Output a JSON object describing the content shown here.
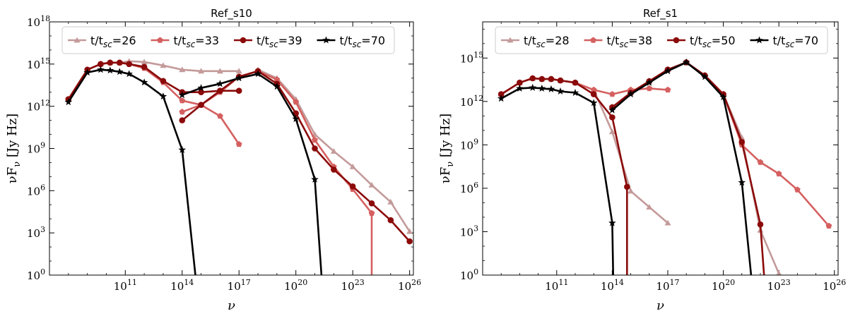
{
  "figure": {
    "x_label": "ν",
    "y_label": "νF_ν [Jy Hz]",
    "legend_prefix": "t/t",
    "legend_sub": "sc"
  },
  "chart_data": [
    {
      "type": "line",
      "title": "Ref_s10",
      "xlabel": "ν",
      "ylabel": "νF_ν [Jy Hz]",
      "x_scale": "log",
      "y_scale": "log",
      "xlim_log10": [
        7.0,
        26.2
      ],
      "ylim_log10": [
        0,
        18
      ],
      "x_ticks": [
        11,
        14,
        17,
        20,
        23,
        26
      ],
      "y_ticks": [
        0,
        3,
        6,
        9,
        12,
        15,
        18
      ],
      "legend_position": "top",
      "series": [
        {
          "name": "t/tsc=26",
          "value": "26",
          "color": "#c49a9a",
          "marker": "triangle",
          "segments": [
            [
              [
                8.0,
                12.5
              ],
              [
                9.0,
                14.6
              ],
              [
                9.7,
                15.0
              ],
              [
                10.2,
                15.1
              ],
              [
                10.7,
                15.1
              ],
              [
                11.2,
                15.2
              ],
              [
                12.0,
                15.15
              ],
              [
                13.0,
                14.9
              ],
              [
                14.0,
                14.6
              ],
              [
                15.0,
                14.5
              ],
              [
                16.0,
                14.5
              ],
              [
                17.0,
                14.5
              ]
            ],
            [
              [
                18.0,
                14.6
              ],
              [
                19.0,
                14.0
              ],
              [
                20.0,
                12.5
              ],
              [
                21.0,
                10.0
              ],
              [
                22.0,
                8.8
              ],
              [
                23.0,
                7.7
              ],
              [
                24.0,
                6.4
              ],
              [
                25.0,
                5.2
              ],
              [
                26.0,
                3.1
              ]
            ]
          ]
        },
        {
          "name": "t/tsc=33",
          "value": "33",
          "color": "#d56060",
          "marker": "pentagon",
          "segments": [
            [
              [
                8.0,
                12.5
              ],
              [
                9.0,
                14.6
              ],
              [
                9.7,
                15.0
              ],
              [
                10.2,
                15.1
              ],
              [
                10.7,
                15.1
              ],
              [
                11.2,
                15.0
              ],
              [
                12.0,
                14.7
              ],
              [
                13.0,
                13.7
              ],
              [
                14.0,
                12.4
              ],
              [
                15.0,
                12.1
              ],
              [
                16.0,
                11.3
              ],
              [
                17.0,
                9.3
              ]
            ],
            [
              [
                14.0,
                11.6
              ],
              [
                15.0,
                12.1
              ],
              [
                16.0,
                13.0
              ],
              [
                17.0,
                14.1
              ],
              [
                18.0,
                14.5
              ],
              [
                19.0,
                13.9
              ],
              [
                20.0,
                12.3
              ],
              [
                21.0,
                9.6
              ],
              [
                22.0,
                7.7
              ],
              [
                23.0,
                6.1
              ],
              [
                24.0,
                4.4
              ],
              [
                24.0,
                0.0
              ]
            ]
          ]
        },
        {
          "name": "t/tsc=39",
          "value": "39",
          "color": "#8b0a0a",
          "marker": "circle",
          "segments": [
            [
              [
                8.0,
                12.5
              ],
              [
                9.0,
                14.6
              ],
              [
                9.7,
                15.0
              ],
              [
                10.2,
                15.1
              ],
              [
                10.7,
                15.1
              ],
              [
                11.2,
                15.0
              ],
              [
                12.0,
                14.8
              ],
              [
                13.0,
                13.8
              ],
              [
                14.0,
                13.0
              ],
              [
                15.0,
                13.0
              ],
              [
                16.0,
                13.1
              ],
              [
                17.0,
                13.1
              ]
            ],
            [
              [
                14.0,
                11.0
              ],
              [
                15.0,
                12.1
              ],
              [
                16.0,
                13.1
              ],
              [
                17.0,
                14.1
              ],
              [
                18.0,
                14.5
              ],
              [
                19.0,
                13.6
              ],
              [
                20.0,
                11.5
              ],
              [
                21.0,
                9.0
              ],
              [
                22.0,
                7.5
              ],
              [
                23.0,
                6.3
              ],
              [
                24.0,
                5.1
              ],
              [
                25.0,
                3.9
              ],
              [
                26.0,
                2.4
              ]
            ]
          ]
        },
        {
          "name": "t/tsc=70",
          "value": "70",
          "color": "#000000",
          "marker": "star",
          "segments": [
            [
              [
                8.0,
                12.3
              ],
              [
                9.0,
                14.4
              ],
              [
                9.7,
                14.6
              ],
              [
                10.2,
                14.55
              ],
              [
                10.7,
                14.45
              ],
              [
                11.2,
                14.3
              ],
              [
                12.0,
                13.7
              ],
              [
                13.0,
                12.7
              ],
              [
                14.0,
                8.9
              ],
              [
                14.7,
                0.0
              ]
            ],
            [
              [
                14.0,
                12.8
              ],
              [
                15.0,
                13.3
              ],
              [
                16.0,
                13.6
              ],
              [
                17.0,
                14.0
              ],
              [
                18.0,
                14.3
              ],
              [
                19.0,
                13.4
              ],
              [
                20.0,
                11.1
              ],
              [
                21.0,
                6.8
              ],
              [
                21.35,
                0.0
              ]
            ]
          ]
        }
      ]
    },
    {
      "type": "line",
      "title": "Ref_s1",
      "xlabel": "ν",
      "ylabel": "νF_ν [Jy Hz]",
      "x_scale": "log",
      "y_scale": "log",
      "xlim_log10": [
        7.0,
        26.2
      ],
      "ylim_log10": [
        0,
        17.5
      ],
      "x_ticks": [
        11,
        14,
        17,
        20,
        23,
        26
      ],
      "y_ticks": [
        0,
        3,
        6,
        9,
        12,
        15
      ],
      "legend_position": "top",
      "series": [
        {
          "name": "t/tsc=28",
          "value": "28",
          "color": "#c49a9a",
          "marker": "triangle",
          "segments": [
            [
              [
                8.0,
                12.5
              ],
              [
                9.0,
                13.3
              ],
              [
                9.7,
                13.6
              ],
              [
                10.2,
                13.55
              ],
              [
                10.7,
                13.55
              ],
              [
                11.2,
                13.45
              ],
              [
                12.0,
                13.3
              ],
              [
                13.0,
                12.8
              ],
              [
                14.0,
                9.9
              ],
              [
                15.0,
                5.8
              ],
              [
                16.0,
                4.7
              ],
              [
                17.0,
                3.6
              ]
            ],
            [
              [
                14.0,
                11.6
              ],
              [
                15.0,
                12.6
              ],
              [
                16.0,
                13.4
              ],
              [
                17.0,
                14.2
              ],
              [
                18.0,
                14.7
              ],
              [
                19.0,
                13.8
              ],
              [
                20.0,
                12.5
              ],
              [
                21.0,
                9.5
              ],
              [
                22.0,
                3.1
              ],
              [
                23.0,
                0.1
              ]
            ]
          ]
        },
        {
          "name": "t/tsc=38",
          "value": "38",
          "color": "#d56060",
          "marker": "pentagon",
          "segments": [
            [
              [
                8.0,
                12.5
              ],
              [
                9.0,
                13.3
              ],
              [
                9.7,
                13.6
              ],
              [
                10.2,
                13.55
              ],
              [
                10.7,
                13.55
              ],
              [
                11.2,
                13.45
              ],
              [
                12.0,
                13.3
              ],
              [
                13.0,
                12.8
              ],
              [
                14.0,
                12.5
              ],
              [
                15.0,
                12.8
              ],
              [
                16.0,
                12.9
              ],
              [
                17.0,
                12.8
              ]
            ],
            [
              [
                14.0,
                11.6
              ],
              [
                15.0,
                12.6
              ],
              [
                16.0,
                13.4
              ],
              [
                17.0,
                14.2
              ],
              [
                18.0,
                14.7
              ],
              [
                19.0,
                13.8
              ],
              [
                20.0,
                12.5
              ],
              [
                21.0,
                9.0
              ],
              [
                22.0,
                7.8
              ],
              [
                23.0,
                7.0
              ],
              [
                24.0,
                5.9
              ],
              [
                25.7,
                3.4
              ]
            ]
          ]
        },
        {
          "name": "t/tsc=50",
          "value": "50",
          "color": "#8b0a0a",
          "marker": "circle",
          "segments": [
            [
              [
                8.0,
                12.5
              ],
              [
                9.0,
                13.3
              ],
              [
                9.7,
                13.6
              ],
              [
                10.2,
                13.55
              ],
              [
                10.7,
                13.55
              ],
              [
                11.2,
                13.45
              ],
              [
                12.0,
                13.3
              ],
              [
                13.0,
                12.5
              ],
              [
                14.0,
                10.9
              ],
              [
                14.8,
                6.1
              ],
              [
                14.8,
                0.0
              ]
            ],
            [
              [
                14.0,
                11.6
              ],
              [
                15.0,
                12.6
              ],
              [
                16.0,
                13.4
              ],
              [
                17.0,
                14.2
              ],
              [
                18.0,
                14.7
              ],
              [
                19.0,
                13.8
              ],
              [
                20.0,
                12.5
              ],
              [
                21.0,
                9.2
              ],
              [
                22.0,
                3.5
              ],
              [
                22.2,
                0.0
              ]
            ]
          ]
        },
        {
          "name": "t/tsc=70",
          "value": "70",
          "color": "#000000",
          "marker": "star",
          "segments": [
            [
              [
                8.0,
                12.2
              ],
              [
                9.0,
                12.9
              ],
              [
                9.7,
                12.95
              ],
              [
                10.2,
                12.9
              ],
              [
                10.7,
                12.85
              ],
              [
                11.2,
                12.7
              ],
              [
                12.0,
                12.6
              ],
              [
                13.0,
                11.9
              ],
              [
                14.0,
                3.6
              ],
              [
                14.05,
                0.0
              ]
            ],
            [
              [
                14.0,
                11.4
              ],
              [
                15.0,
                12.5
              ],
              [
                16.0,
                13.3
              ],
              [
                17.0,
                14.1
              ],
              [
                18.0,
                14.7
              ],
              [
                19.0,
                13.7
              ],
              [
                20.0,
                12.3
              ],
              [
                21.0,
                6.4
              ],
              [
                21.5,
                0.0
              ]
            ]
          ]
        }
      ]
    }
  ]
}
